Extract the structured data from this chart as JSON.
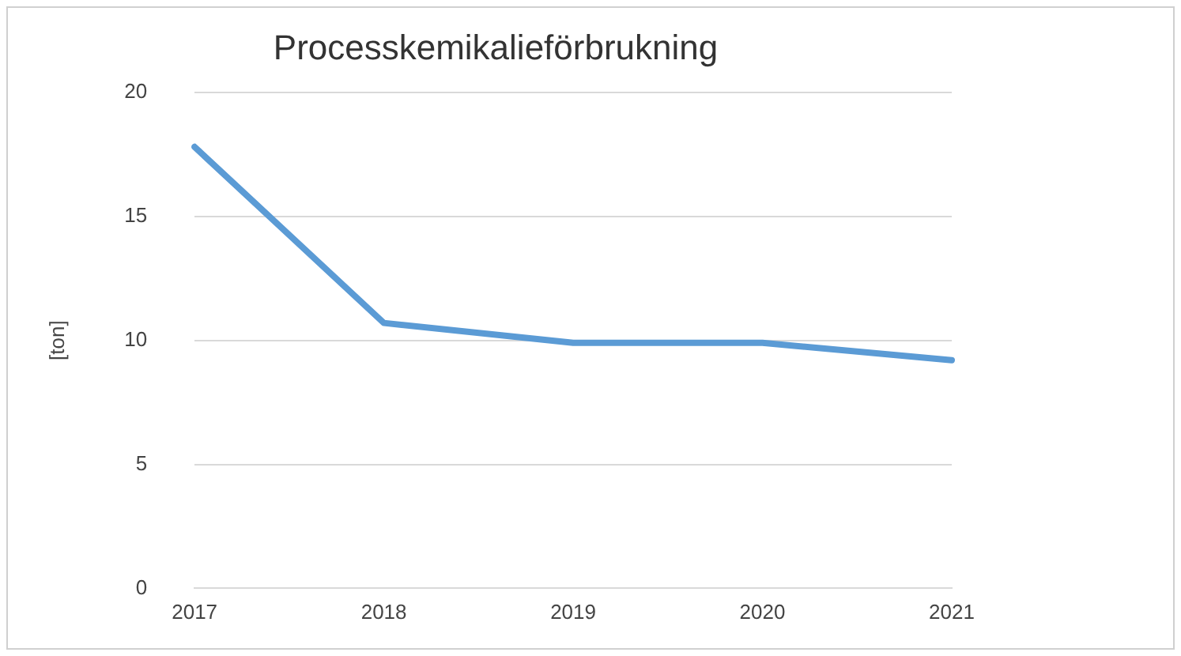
{
  "chart_data": {
    "type": "line",
    "title": "Processkemikalieförbrukning",
    "ylabel": "[ton]",
    "categories": [
      "2017",
      "2018",
      "2019",
      "2020",
      "2021"
    ],
    "series": [
      {
        "color": "#5b9bd5",
        "values": [
          17.8,
          10.7,
          9.9,
          9.9,
          9.2
        ]
      }
    ],
    "ylim": [
      0,
      20
    ],
    "yticks": [
      0,
      5,
      10,
      15,
      20
    ],
    "grid": "y",
    "marker": "none",
    "line_style": "solid"
  }
}
